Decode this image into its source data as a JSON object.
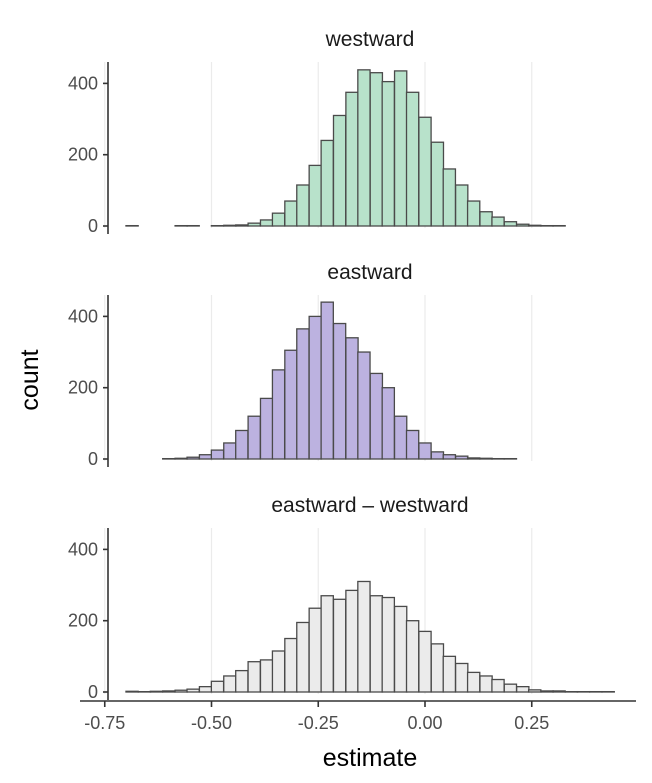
{
  "chart_data": {
    "type": "bar",
    "subtype": "faceted-histogram",
    "xlabel": "estimate",
    "ylabel": "count",
    "xlim": [
      -0.75,
      0.45
    ],
    "ylim": [
      0,
      460
    ],
    "x_ticks": [
      -0.75,
      -0.5,
      -0.25,
      0.0,
      0.25
    ],
    "x_tick_labels": [
      "-0.75",
      "-0.50",
      "-0.25",
      "0.00",
      "0.25"
    ],
    "y_ticks": [
      0,
      200,
      400
    ],
    "y_tick_labels": [
      "0",
      "200",
      "400"
    ],
    "grid": "vertical-major",
    "legend": "none",
    "bin_width": 0.0286,
    "panels": [
      {
        "title": "westward",
        "fill": "#b8e2cb",
        "bin_centers": [
          -0.686,
          -0.657,
          -0.629,
          -0.6,
          -0.571,
          -0.543,
          -0.514,
          -0.486,
          -0.457,
          -0.429,
          -0.4,
          -0.371,
          -0.343,
          -0.314,
          -0.286,
          -0.257,
          -0.229,
          -0.2,
          -0.171,
          -0.143,
          -0.114,
          -0.086,
          -0.057,
          -0.029,
          0.0,
          0.029,
          0.057,
          0.086,
          0.114,
          0.143,
          0.171,
          0.2,
          0.229,
          0.257,
          0.286,
          0.314,
          0.343,
          0.371,
          0.4,
          0.429
        ],
        "counts": [
          1,
          0,
          0,
          0,
          1,
          1,
          0,
          1,
          2,
          3,
          8,
          17,
          36,
          70,
          115,
          170,
          240,
          310,
          375,
          438,
          430,
          405,
          435,
          375,
          305,
          235,
          160,
          115,
          70,
          40,
          25,
          12,
          5,
          2,
          1,
          1,
          0,
          0,
          0,
          0
        ]
      },
      {
        "title": "eastward",
        "fill": "#bcb2e0",
        "bin_centers": [
          -0.6,
          -0.571,
          -0.543,
          -0.514,
          -0.486,
          -0.457,
          -0.429,
          -0.4,
          -0.371,
          -0.343,
          -0.314,
          -0.286,
          -0.257,
          -0.229,
          -0.2,
          -0.171,
          -0.143,
          -0.114,
          -0.086,
          -0.057,
          -0.029,
          0.0,
          0.029,
          0.057,
          0.086,
          0.114,
          0.143,
          0.171,
          0.2,
          0.229,
          0.257,
          0.286,
          0.314,
          0.343,
          0.371,
          0.4,
          0.429
        ],
        "counts": [
          1,
          2,
          5,
          12,
          25,
          45,
          80,
          120,
          170,
          250,
          305,
          365,
          400,
          440,
          380,
          340,
          300,
          240,
          200,
          120,
          80,
          45,
          20,
          12,
          8,
          3,
          2,
          1,
          1,
          0,
          0,
          0,
          0,
          0,
          0,
          0,
          0
        ]
      },
      {
        "title": "eastward – westward",
        "fill": "#ebebeb",
        "bin_centers": [
          -0.686,
          -0.657,
          -0.629,
          -0.6,
          -0.571,
          -0.543,
          -0.514,
          -0.486,
          -0.457,
          -0.429,
          -0.4,
          -0.371,
          -0.343,
          -0.314,
          -0.286,
          -0.257,
          -0.229,
          -0.2,
          -0.171,
          -0.143,
          -0.114,
          -0.086,
          -0.057,
          -0.029,
          0.0,
          0.029,
          0.057,
          0.086,
          0.114,
          0.143,
          0.171,
          0.2,
          0.229,
          0.257,
          0.286,
          0.314,
          0.343,
          0.371,
          0.4,
          0.429
        ],
        "counts": [
          2,
          1,
          2,
          3,
          5,
          8,
          15,
          30,
          45,
          60,
          85,
          90,
          115,
          150,
          195,
          235,
          270,
          260,
          285,
          310,
          270,
          265,
          240,
          200,
          170,
          135,
          100,
          80,
          55,
          45,
          35,
          22,
          15,
          6,
          3,
          3,
          1,
          1,
          1,
          1
        ]
      }
    ]
  }
}
